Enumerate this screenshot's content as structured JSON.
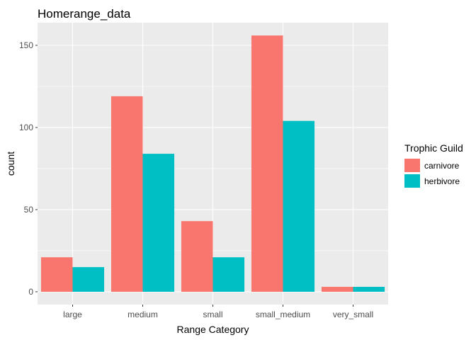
{
  "chart_data": {
    "type": "bar",
    "title": "Homerange_data",
    "xlabel": "Range Category",
    "ylabel": "count",
    "categories": [
      "large",
      "medium",
      "small",
      "small_medium",
      "very_small"
    ],
    "series": [
      {
        "name": "carnivore",
        "values": [
          21,
          119,
          43,
          156,
          3
        ],
        "color": "#F8766D"
      },
      {
        "name": "herbivore",
        "values": [
          15,
          84,
          21,
          104,
          3
        ],
        "color": "#00BFC4"
      }
    ],
    "yticks": [
      0,
      50,
      100,
      150
    ],
    "ylim": [
      -7.8,
      163.8
    ],
    "legend": {
      "title": "Trophic Guild",
      "position": "right"
    },
    "grid": true,
    "panel_background": "#EBEBEB",
    "grid_color": "#FFFFFF"
  }
}
